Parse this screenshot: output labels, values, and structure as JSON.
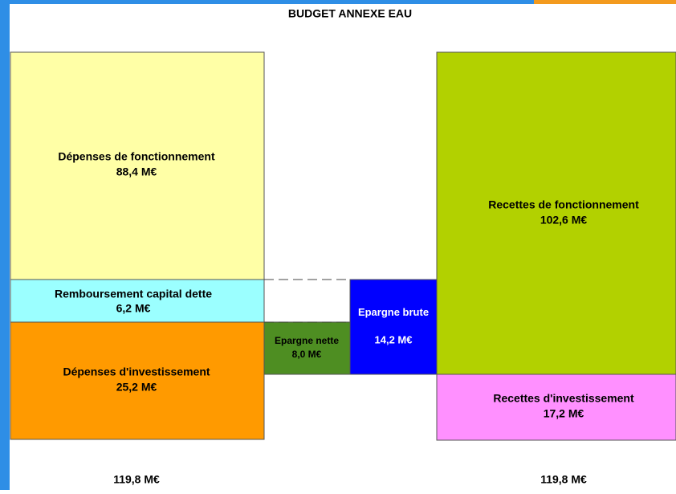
{
  "title": "BUDGET ANNEXE EAU",
  "blocks": [
    {
      "label": "Dépenses de fonctionnement",
      "value": "88,4 M€"
    },
    {
      "label": "Remboursement capital dette",
      "value": "6,2 M€"
    },
    {
      "label": "Dépenses d'investissement",
      "value": "25,2 M€"
    },
    {
      "label": "Epargne nette",
      "value": "8,0 M€"
    },
    {
      "label": "Epargne brute",
      "value": "14,2 M€"
    },
    {
      "label": "Recettes de fonctionnement",
      "value": "102,6 M€"
    },
    {
      "label": "Recettes d'investissement",
      "value": "17,2 M€"
    }
  ],
  "totals": [
    "119,8 M€",
    "119,8 M€"
  ]
}
